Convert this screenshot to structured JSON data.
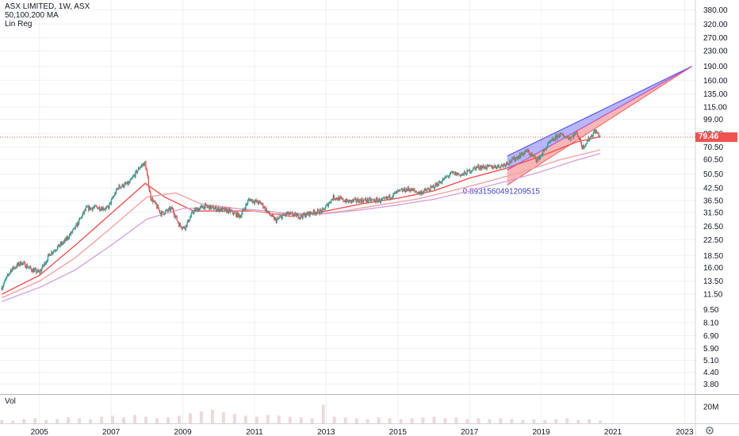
{
  "header": {
    "symbol_line": "ASX LIMITED, 1W, ASX",
    "ma_line": "50,100,200 MA",
    "linreg_line": "Lin Reg"
  },
  "volume_pane": {
    "label": "Vol",
    "axis_label": "20M"
  },
  "current_price": "79.46",
  "annotation": "0.8931560491209515",
  "colors": {
    "up": "#26a69a",
    "down": "#ef5350",
    "ma50": "#ef5350",
    "ma100": "#f2a4a4",
    "ma200": "#d7a4dc",
    "reg_upper": "#5b5bf0",
    "reg_lower": "#f07070",
    "price_line": "#ef5350"
  },
  "chart_data": {
    "type": "candlestick",
    "title": "ASX LIMITED, 1W, ASX",
    "y_scale": "log",
    "y_ticks": [
      "380.00",
      "320.00",
      "270.00",
      "230.00",
      "190.00",
      "160.00",
      "135.00",
      "115.00",
      "99.00",
      "83.00",
      "70.50",
      "60.50",
      "50.50",
      "42.50",
      "36.50",
      "31.50",
      "26.50",
      "22.50",
      "18.50",
      "16.00",
      "13.50",
      "11.50",
      "9.50",
      "8.10",
      "6.90",
      "5.90",
      "5.10",
      "4.40",
      "3.80"
    ],
    "x_ticks": [
      "2005",
      "2007",
      "2009",
      "2011",
      "2013",
      "2015",
      "2017",
      "2019",
      "2021",
      "2023"
    ],
    "ylim": [
      3.4,
      430
    ],
    "xlim": [
      2003.9,
      2023.3
    ],
    "price_series": [
      [
        2003.95,
        12.5
      ],
      [
        2004.2,
        15.5
      ],
      [
        2004.5,
        17.0
      ],
      [
        2004.8,
        15.5
      ],
      [
        2005.0,
        15.0
      ],
      [
        2005.3,
        19.0
      ],
      [
        2005.7,
        22.0
      ],
      [
        2006.0,
        26.0
      ],
      [
        2006.3,
        33.0
      ],
      [
        2006.6,
        33.5
      ],
      [
        2006.9,
        33.0
      ],
      [
        2007.2,
        43.0
      ],
      [
        2007.5,
        45.0
      ],
      [
        2007.8,
        55.0
      ],
      [
        2007.95,
        58.0
      ],
      [
        2008.1,
        38.0
      ],
      [
        2008.4,
        31.0
      ],
      [
        2008.7,
        33.0
      ],
      [
        2008.9,
        27.0
      ],
      [
        2009.05,
        26.0
      ],
      [
        2009.3,
        32.0
      ],
      [
        2009.6,
        34.0
      ],
      [
        2009.9,
        33.0
      ],
      [
        2010.3,
        32.0
      ],
      [
        2010.6,
        30.0
      ],
      [
        2010.85,
        37.0
      ],
      [
        2011.2,
        35.0
      ],
      [
        2011.4,
        31.0
      ],
      [
        2011.6,
        28.5
      ],
      [
        2011.9,
        31.0
      ],
      [
        2012.3,
        30.0
      ],
      [
        2012.6,
        31.5
      ],
      [
        2012.9,
        32.0
      ],
      [
        2013.2,
        38.0
      ],
      [
        2013.6,
        36.0
      ],
      [
        2013.9,
        36.5
      ],
      [
        2014.3,
        36.5
      ],
      [
        2014.6,
        36.5
      ],
      [
        2015.0,
        40.5
      ],
      [
        2015.3,
        42.0
      ],
      [
        2015.6,
        40.0
      ],
      [
        2015.9,
        42.0
      ],
      [
        2016.2,
        46.0
      ],
      [
        2016.5,
        51.0
      ],
      [
        2016.8,
        50.0
      ],
      [
        2017.2,
        55.0
      ],
      [
        2017.6,
        55.0
      ],
      [
        2017.9,
        56.0
      ],
      [
        2018.2,
        60.0
      ],
      [
        2018.6,
        67.0
      ],
      [
        2018.9,
        60.0
      ],
      [
        2019.2,
        73.0
      ],
      [
        2019.5,
        82.0
      ],
      [
        2019.8,
        79.0
      ],
      [
        2020.0,
        84.0
      ],
      [
        2020.15,
        70.0
      ],
      [
        2020.5,
        86.0
      ],
      [
        2020.65,
        79.46
      ]
    ],
    "series": [
      {
        "name": "50",
        "values": [
          [
            2003.95,
            11.5
          ],
          [
            2005.0,
            14.5
          ],
          [
            2006.0,
            21.0
          ],
          [
            2007.0,
            31.0
          ],
          [
            2007.95,
            45.0
          ],
          [
            2008.5,
            38.0
          ],
          [
            2009.3,
            32.0
          ],
          [
            2010.0,
            32.0
          ],
          [
            2011.0,
            32.0
          ],
          [
            2012.0,
            30.0
          ],
          [
            2013.0,
            32.0
          ],
          [
            2014.0,
            35.0
          ],
          [
            2015.0,
            37.5
          ],
          [
            2016.0,
            41.0
          ],
          [
            2017.0,
            48.0
          ],
          [
            2018.0,
            54.0
          ],
          [
            2019.0,
            63.0
          ],
          [
            2020.0,
            75.0
          ],
          [
            2020.65,
            80.0
          ]
        ]
      },
      {
        "name": "100",
        "values": [
          [
            2003.95,
            11.0
          ],
          [
            2005.0,
            13.5
          ],
          [
            2006.0,
            18.0
          ],
          [
            2007.0,
            26.0
          ],
          [
            2008.0,
            38.0
          ],
          [
            2008.8,
            40.0
          ],
          [
            2009.5,
            35.0
          ],
          [
            2010.5,
            33.0
          ],
          [
            2011.5,
            31.0
          ],
          [
            2012.5,
            30.5
          ],
          [
            2013.5,
            32.0
          ],
          [
            2014.5,
            34.5
          ],
          [
            2015.5,
            37.0
          ],
          [
            2016.5,
            41.0
          ],
          [
            2017.5,
            46.0
          ],
          [
            2018.5,
            52.0
          ],
          [
            2019.5,
            60.0
          ],
          [
            2020.65,
            68.0
          ]
        ]
      },
      {
        "name": "200",
        "values": [
          [
            2003.95,
            10.5
          ],
          [
            2005.0,
            12.5
          ],
          [
            2006.0,
            15.5
          ],
          [
            2007.0,
            21.0
          ],
          [
            2008.0,
            29.0
          ],
          [
            2009.0,
            33.0
          ],
          [
            2010.0,
            33.5
          ],
          [
            2011.0,
            32.5
          ],
          [
            2012.0,
            31.0
          ],
          [
            2013.0,
            31.0
          ],
          [
            2014.0,
            32.5
          ],
          [
            2015.0,
            34.5
          ],
          [
            2016.0,
            37.0
          ],
          [
            2017.0,
            41.0
          ],
          [
            2018.0,
            46.0
          ],
          [
            2019.0,
            52.0
          ],
          [
            2020.0,
            60.0
          ],
          [
            2020.65,
            65.0
          ]
        ]
      }
    ],
    "regression": {
      "start": 2018.05,
      "end": 2023.2,
      "upper_start": 63.0,
      "mid_start": 53.0,
      "lower_start": 44.0,
      "end_value": 190.0,
      "label": "0.8931560491209515"
    },
    "volume": [
      4,
      3,
      5,
      6,
      4,
      5,
      7,
      6,
      5,
      8,
      9,
      7,
      10,
      8,
      6,
      7,
      9,
      12,
      14,
      16,
      13,
      11,
      9,
      8,
      10,
      9,
      8,
      7,
      6,
      22,
      8,
      7,
      6,
      5,
      7,
      6,
      5,
      6,
      7,
      8,
      6,
      7,
      5,
      6,
      5,
      6,
      5,
      4,
      5,
      4,
      5,
      6,
      4,
      5,
      3
    ],
    "volume_ylim": [
      0,
      32
    ],
    "grid": true,
    "legend": "top-left"
  }
}
